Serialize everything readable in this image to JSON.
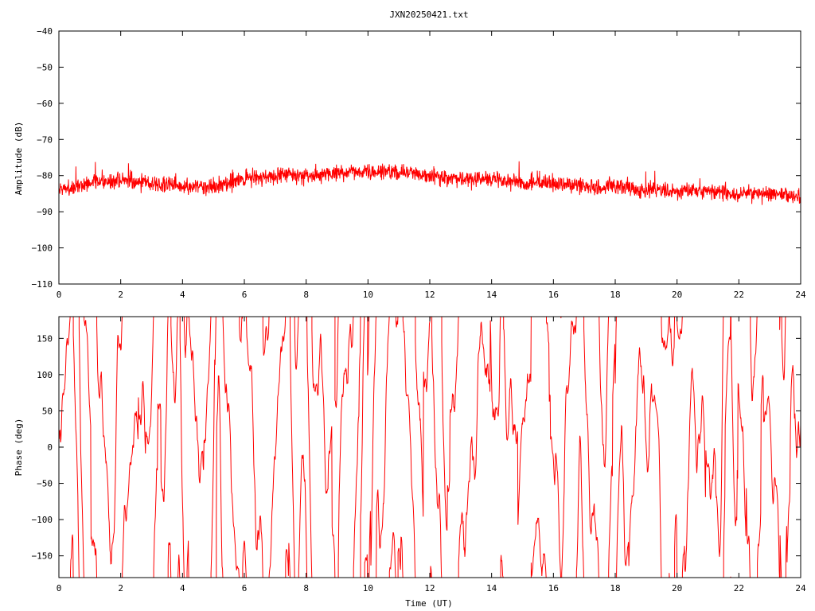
{
  "title": "JXN20250421.txt",
  "colors": {
    "series": "#ff0000",
    "axes": "#000000",
    "background": "#ffffff"
  },
  "chart_data": [
    {
      "type": "line",
      "ylabel": "Amplitude (dB)",
      "xlabel": "",
      "xlim": [
        0,
        24
      ],
      "ylim": [
        -110,
        -40
      ],
      "x_ticks": [
        0,
        2,
        4,
        6,
        8,
        10,
        12,
        14,
        16,
        18,
        20,
        22,
        24
      ],
      "y_ticks": [
        -40,
        -50,
        -60,
        -70,
        -80,
        -90,
        -100,
        -110
      ],
      "grid": false,
      "series": [
        {
          "x": [
            0,
            1,
            2,
            3,
            4,
            5,
            6,
            7,
            8,
            9,
            10,
            11,
            12,
            13,
            14,
            15,
            16,
            17,
            18,
            19,
            20,
            21,
            22,
            23,
            24
          ],
          "y": [
            -84,
            -82,
            -81,
            -82,
            -83,
            -83,
            -81,
            -80,
            -80,
            -79,
            -79,
            -79,
            -80,
            -81,
            -81,
            -82,
            -82,
            -83,
            -83,
            -84,
            -84,
            -84,
            -85,
            -85,
            -86
          ],
          "noise_band_db": 7
        }
      ]
    },
    {
      "type": "line",
      "ylabel": "Phase (deg)",
      "xlabel": "Time (UT)",
      "xlim": [
        0,
        24
      ],
      "ylim": [
        -180,
        180
      ],
      "x_ticks": [
        0,
        2,
        4,
        6,
        8,
        10,
        12,
        14,
        16,
        18,
        20,
        22,
        24
      ],
      "y_ticks": [
        150,
        100,
        50,
        0,
        -50,
        -100,
        -150
      ],
      "grid": false,
      "series": [
        {
          "x_range": [
            0,
            24
          ],
          "y_range": [
            -180,
            180
          ],
          "description_pattern": "wrapping phase noise"
        }
      ]
    }
  ]
}
